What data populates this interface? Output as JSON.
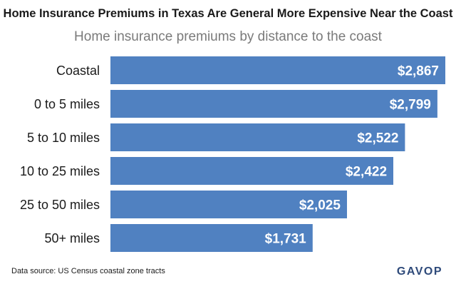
{
  "header": {
    "title": "Home Insurance Premiums in Texas Are General More Expensive Near the Coast",
    "subtitle": "Home insurance premiums by distance to the coast"
  },
  "footer": {
    "source": "Data source: US Census coastal zone tracts",
    "brand": "GAVOP",
    "brand_color": "#2e4a7a"
  },
  "chart_data": {
    "type": "bar",
    "orientation": "horizontal",
    "categories": [
      "Coastal",
      "0 to 5 miles",
      "5 to 10 miles",
      "10 to 25 miles",
      "25 to 50 miles",
      "50+ miles"
    ],
    "values": [
      2867,
      2799,
      2522,
      2422,
      2025,
      1731
    ],
    "data_labels": [
      "$2,867",
      "$2,799",
      "$2,522",
      "$2,422",
      "$2,025",
      "$1,731"
    ],
    "title": "Home Insurance Premiums in Texas Are General More Expensive Near the Coast",
    "subtitle": "Home insurance premiums by distance to the coast",
    "xlim": [
      0,
      2867
    ],
    "bar_color": "#5081c1",
    "grid": false,
    "legend": "none"
  }
}
